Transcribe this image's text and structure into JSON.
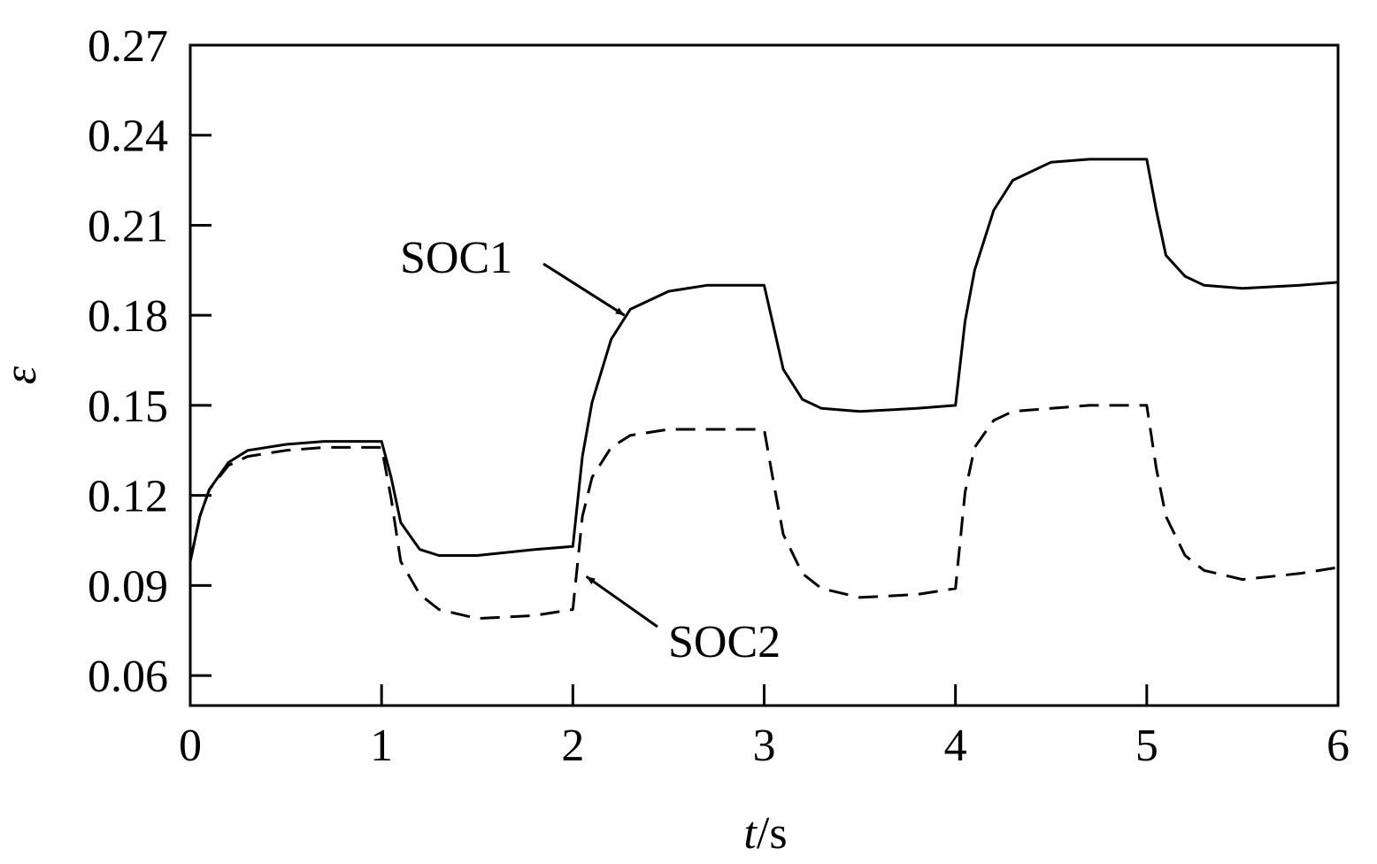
{
  "chart_data": {
    "type": "line",
    "xlabel_italic": "t",
    "xlabel_unit": "/s",
    "ylabel": "ε",
    "xlim": [
      0,
      6
    ],
    "ylim": [
      0.05,
      0.27
    ],
    "x_ticks": [
      0,
      1,
      2,
      3,
      4,
      5,
      6
    ],
    "x_tick_labels": [
      "0",
      "1",
      "2",
      "3",
      "4",
      "5",
      "6"
    ],
    "y_ticks": [
      0.06,
      0.09,
      0.12,
      0.15,
      0.18,
      0.21,
      0.24,
      0.27
    ],
    "y_tick_labels": [
      "0.06",
      "0.09",
      "0.12",
      "0.15",
      "0.18",
      "0.21",
      "0.24",
      "0.27"
    ],
    "grid": false,
    "series": [
      {
        "name": "SOC1",
        "line_style": "solid",
        "color": "#000000",
        "x": [
          0,
          0.05,
          0.1,
          0.2,
          0.3,
          0.5,
          0.7,
          0.9,
          1.0,
          1.05,
          1.1,
          1.2,
          1.3,
          1.5,
          1.8,
          2.0,
          2.05,
          2.1,
          2.2,
          2.3,
          2.5,
          2.7,
          2.9,
          3.0,
          3.05,
          3.1,
          3.2,
          3.3,
          3.5,
          3.8,
          4.0,
          4.05,
          4.1,
          4.2,
          4.3,
          4.5,
          4.7,
          4.9,
          5.0,
          5.05,
          5.1,
          5.2,
          5.3,
          5.5,
          5.8,
          6.0
        ],
        "y": [
          0.098,
          0.113,
          0.122,
          0.131,
          0.135,
          0.137,
          0.138,
          0.138,
          0.138,
          0.126,
          0.111,
          0.102,
          0.1,
          0.1,
          0.102,
          0.103,
          0.133,
          0.151,
          0.172,
          0.182,
          0.188,
          0.19,
          0.19,
          0.19,
          0.176,
          0.162,
          0.152,
          0.149,
          0.148,
          0.149,
          0.15,
          0.178,
          0.195,
          0.215,
          0.225,
          0.231,
          0.232,
          0.232,
          0.232,
          0.215,
          0.2,
          0.193,
          0.19,
          0.189,
          0.19,
          0.191
        ]
      },
      {
        "name": "SOC2",
        "line_style": "dashed",
        "color": "#000000",
        "x": [
          0,
          0.05,
          0.1,
          0.2,
          0.3,
          0.5,
          0.7,
          0.9,
          1.0,
          1.05,
          1.1,
          1.2,
          1.3,
          1.5,
          1.8,
          2.0,
          2.05,
          2.1,
          2.2,
          2.3,
          2.5,
          2.7,
          2.9,
          3.0,
          3.05,
          3.1,
          3.2,
          3.3,
          3.5,
          3.8,
          4.0,
          4.05,
          4.1,
          4.2,
          4.3,
          4.5,
          4.7,
          4.9,
          5.0,
          5.05,
          5.1,
          5.2,
          5.3,
          5.5,
          5.8,
          6.0
        ],
        "y": [
          0.098,
          0.113,
          0.122,
          0.13,
          0.133,
          0.135,
          0.136,
          0.136,
          0.136,
          0.119,
          0.098,
          0.087,
          0.082,
          0.079,
          0.08,
          0.082,
          0.113,
          0.126,
          0.136,
          0.14,
          0.142,
          0.142,
          0.142,
          0.142,
          0.124,
          0.107,
          0.094,
          0.089,
          0.086,
          0.087,
          0.089,
          0.121,
          0.136,
          0.145,
          0.148,
          0.149,
          0.15,
          0.15,
          0.15,
          0.129,
          0.113,
          0.1,
          0.095,
          0.092,
          0.094,
          0.096
        ]
      }
    ],
    "annotations": [
      {
        "text": "SOC1",
        "series": "SOC1",
        "arrow_to_x": 2.27,
        "arrow_to_y": 0.18
      },
      {
        "text": "SOC2",
        "series": "SOC2",
        "arrow_to_x": 2.07,
        "arrow_to_y": 0.093
      }
    ]
  }
}
